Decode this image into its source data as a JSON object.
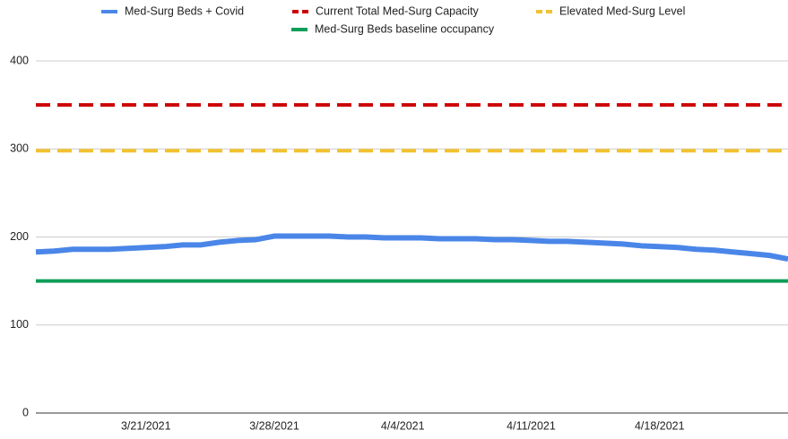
{
  "chart_data": {
    "type": "line",
    "x": [
      "3/15/2021",
      "3/16/2021",
      "3/17/2021",
      "3/18/2021",
      "3/19/2021",
      "3/20/2021",
      "3/21/2021",
      "3/22/2021",
      "3/23/2021",
      "3/24/2021",
      "3/25/2021",
      "3/26/2021",
      "3/27/2021",
      "3/28/2021",
      "3/29/2021",
      "3/30/2021",
      "3/31/2021",
      "4/1/2021",
      "4/2/2021",
      "4/3/2021",
      "4/4/2021",
      "4/5/2021",
      "4/6/2021",
      "4/7/2021",
      "4/8/2021",
      "4/9/2021",
      "4/10/2021",
      "4/11/2021",
      "4/12/2021",
      "4/13/2021",
      "4/14/2021",
      "4/15/2021",
      "4/16/2021",
      "4/17/2021",
      "4/18/2021",
      "4/19/2021",
      "4/20/2021",
      "4/21/2021",
      "4/22/2021",
      "4/23/2021",
      "4/24/2021",
      "4/25/2021"
    ],
    "series": [
      {
        "name": "Med-Surg Beds + Covid",
        "color": "#4a86e8",
        "values": [
          183,
          184,
          186,
          186,
          186,
          187,
          188,
          189,
          191,
          191,
          194,
          196,
          197,
          201,
          201,
          201,
          201,
          200,
          200,
          199,
          199,
          199,
          198,
          198,
          198,
          197,
          197,
          196,
          195,
          195,
          194,
          193,
          192,
          190,
          189,
          188,
          186,
          185,
          183,
          181,
          179,
          175
        ]
      }
    ],
    "reference_lines": [
      {
        "name": "Current Total Med-Surg Capacity",
        "color": "#cc0000",
        "value": 350,
        "style": "dashed"
      },
      {
        "name": "Elevated Med-Surg Level",
        "color": "#f1c232",
        "value": 298,
        "style": "dashed"
      },
      {
        "name": "Med-Surg Beds baseline occupancy",
        "color": "#0f9d58",
        "value": 150,
        "style": "solid"
      }
    ],
    "xticks": [
      "3/21/2021",
      "3/28/2021",
      "4/4/2021",
      "4/11/2021",
      "4/18/2021"
    ],
    "ylim": [
      0,
      400
    ],
    "yticks": [
      0,
      100,
      200,
      300,
      400
    ],
    "grid": true
  }
}
